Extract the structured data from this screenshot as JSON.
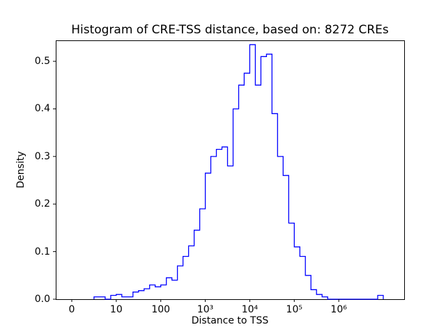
{
  "chart_data": {
    "type": "bar",
    "subtype": "step-histogram",
    "title": "Histogram of CRE-TSS distance, based on: 8272 CREs",
    "xlabel": "Distance to TSS",
    "ylabel": "Density",
    "x_scale": "symlog",
    "line_color": "#0000ff",
    "axes_color": "#000000",
    "background_color": "#ffffff",
    "grid": false,
    "legend": null,
    "x_axis": {
      "u_min": -0.36,
      "u_max": 7.47,
      "ticks_u": [
        0,
        1,
        2,
        3,
        4,
        5,
        6
      ],
      "tick_labels": [
        "0",
        "10",
        "100",
        "10³",
        "10⁴",
        "10⁵",
        "10⁶"
      ]
    },
    "y_axis": {
      "min": 0,
      "max": 0.544,
      "ticks": [
        0.0,
        0.1,
        0.2,
        0.3,
        0.4,
        0.5
      ],
      "tick_labels": [
        "0.0",
        "0.1",
        "0.2",
        "0.3",
        "0.4",
        "0.5"
      ]
    },
    "bin_edges_log10": [
      0.5,
      0.625,
      0.75,
      0.875,
      1.0,
      1.125,
      1.25,
      1.375,
      1.5,
      1.625,
      1.75,
      1.875,
      2.0,
      2.125,
      2.25,
      2.375,
      2.5,
      2.625,
      2.75,
      2.875,
      3.0,
      3.125,
      3.25,
      3.375,
      3.5,
      3.625,
      3.75,
      3.875,
      4.0,
      4.125,
      4.25,
      4.375,
      4.5,
      4.625,
      4.75,
      4.875,
      5.0,
      5.125,
      5.25,
      5.375,
      5.5,
      5.625,
      5.75,
      5.875,
      6.0,
      6.125,
      6.25,
      6.375,
      6.5,
      6.625,
      6.75,
      6.875,
      7.0
    ],
    "densities": [
      0.005,
      0.005,
      0.0,
      0.008,
      0.01,
      0.005,
      0.005,
      0.015,
      0.018,
      0.022,
      0.03,
      0.026,
      0.03,
      0.045,
      0.04,
      0.07,
      0.09,
      0.112,
      0.145,
      0.19,
      0.265,
      0.3,
      0.315,
      0.32,
      0.28,
      0.4,
      0.45,
      0.475,
      0.535,
      0.45,
      0.51,
      0.515,
      0.39,
      0.3,
      0.26,
      0.16,
      0.11,
      0.09,
      0.05,
      0.02,
      0.01,
      0.005,
      0.0,
      0.0,
      0.0,
      0.0,
      0.0,
      0.0,
      0.0,
      0.0,
      0.0,
      0.008
    ]
  }
}
